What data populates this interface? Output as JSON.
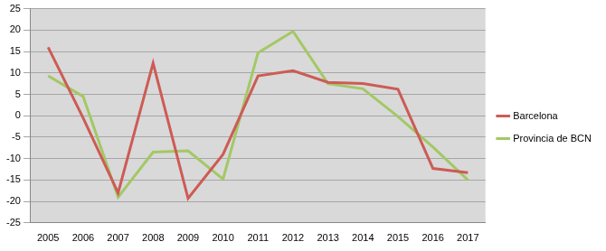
{
  "chart_data": {
    "type": "line",
    "categories": [
      "2005",
      "2006",
      "2007",
      "2008",
      "2009",
      "2010",
      "2011",
      "2012",
      "2013",
      "2014",
      "2015",
      "2016",
      "2017"
    ],
    "series": [
      {
        "name": "Barcelona",
        "color": "#cd5b55",
        "values": [
          16,
          -0.5,
          -18,
          12.3,
          -19.3,
          -9,
          9.3,
          10.5,
          7.8,
          7.5,
          6.2,
          -12.3,
          -13.3
        ]
      },
      {
        "name": "Provincia de BCN",
        "color": "#a3c865",
        "values": [
          9.3,
          4.5,
          -19,
          -8.5,
          -8.2,
          -14.8,
          14.7,
          19.7,
          7.5,
          6.3,
          -0.2,
          -7.3,
          -15
        ]
      }
    ],
    "ylim": [
      -25,
      25
    ],
    "yticks": [
      -25,
      -20,
      -15,
      -10,
      -5,
      0,
      5,
      10,
      15,
      20,
      25
    ],
    "grid": true,
    "legend": "right"
  }
}
